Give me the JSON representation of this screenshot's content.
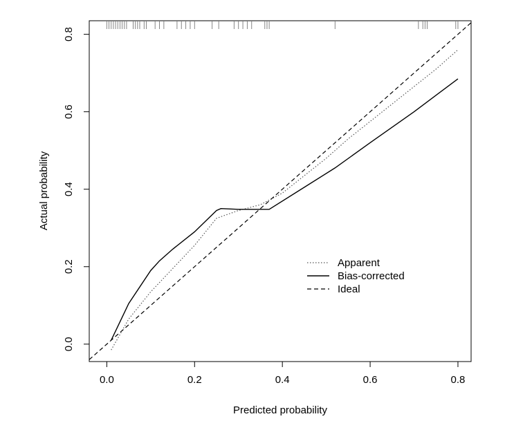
{
  "chart_data": {
    "type": "line",
    "title": "",
    "xlabel": "Predicted probability",
    "ylabel": "Actual probability",
    "xlim": [
      -0.04,
      0.83
    ],
    "ylim": [
      -0.045,
      0.835
    ],
    "x_ticks": [
      0.0,
      0.2,
      0.4,
      0.6,
      0.8
    ],
    "y_ticks": [
      0.0,
      0.2,
      0.4,
      0.6,
      0.8
    ],
    "x_tick_labels": [
      "0.0",
      "0.2",
      "0.4",
      "0.6",
      "0.8"
    ],
    "y_tick_labels": [
      "0.0",
      "0.2",
      "0.4",
      "0.6",
      "0.8"
    ],
    "grid": false,
    "legend_position": "bottom-right",
    "series": [
      {
        "name": "Apparent",
        "style": "dotted",
        "color": "#555555",
        "x": [
          0.01,
          0.05,
          0.1,
          0.15,
          0.2,
          0.25,
          0.3,
          0.35,
          0.4,
          0.45,
          0.5,
          0.55,
          0.6,
          0.65,
          0.7,
          0.75,
          0.8
        ],
        "y": [
          -0.015,
          0.065,
          0.135,
          0.195,
          0.255,
          0.325,
          0.345,
          0.36,
          0.39,
          0.435,
          0.48,
          0.53,
          0.575,
          0.62,
          0.665,
          0.71,
          0.76
        ]
      },
      {
        "name": "Bias-corrected",
        "style": "solid",
        "color": "#000000",
        "x": [
          0.01,
          0.05,
          0.1,
          0.12,
          0.15,
          0.2,
          0.25,
          0.26,
          0.3,
          0.35,
          0.37,
          0.45,
          0.52,
          0.6,
          0.7,
          0.8
        ],
        "y": [
          0.01,
          0.105,
          0.19,
          0.215,
          0.245,
          0.29,
          0.345,
          0.35,
          0.348,
          0.348,
          0.348,
          0.405,
          0.455,
          0.52,
          0.6,
          0.685
        ]
      },
      {
        "name": "Ideal",
        "style": "dashed",
        "color": "#000000",
        "x": [
          -0.04,
          0.83
        ],
        "y": [
          -0.04,
          0.83
        ]
      }
    ],
    "rug": [
      0.0,
      0.005,
      0.01,
      0.015,
      0.02,
      0.025,
      0.03,
      0.035,
      0.04,
      0.045,
      0.06,
      0.065,
      0.07,
      0.075,
      0.085,
      0.09,
      0.11,
      0.12,
      0.13,
      0.16,
      0.17,
      0.18,
      0.19,
      0.2,
      0.24,
      0.255,
      0.29,
      0.3,
      0.31,
      0.32,
      0.33,
      0.36,
      0.365,
      0.37,
      0.52,
      0.71,
      0.72,
      0.725,
      0.73,
      0.795,
      0.8
    ]
  }
}
